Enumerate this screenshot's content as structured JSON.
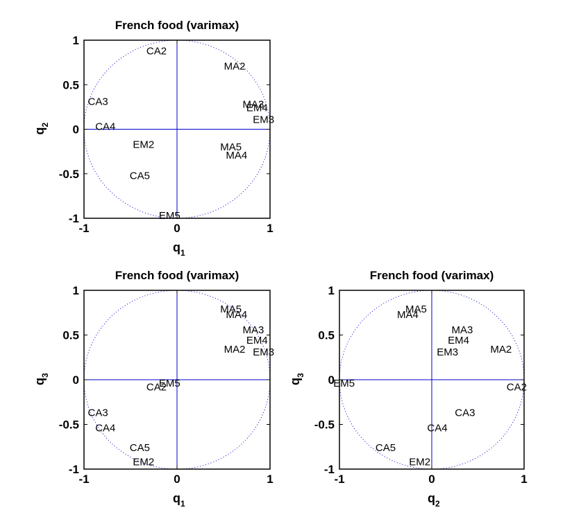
{
  "colors": {
    "axis": "#000000",
    "crosshair": "#0000cc",
    "circle": "#0000cc",
    "text": "#000000"
  },
  "chart_data": [
    {
      "type": "scatter",
      "title": "French food (varimax)",
      "xlabel": {
        "main": "q",
        "sub": "1"
      },
      "ylabel": {
        "main": "q",
        "sub": "2"
      },
      "xlim": [
        -1,
        1
      ],
      "ylim": [
        -1,
        1
      ],
      "xticks": [
        "-1",
        "0",
        "1"
      ],
      "yticks": [
        "1",
        "0.5",
        "0",
        "-0.5",
        "-1"
      ],
      "unit_circle": true,
      "points": [
        {
          "label": "CA2",
          "x": -0.22,
          "y": 0.88
        },
        {
          "label": "MA2",
          "x": 0.62,
          "y": 0.71
        },
        {
          "label": "CA3",
          "x": -0.85,
          "y": 0.31
        },
        {
          "label": "MA3",
          "x": 0.82,
          "y": 0.28
        },
        {
          "label": "EM4",
          "x": 0.86,
          "y": 0.24
        },
        {
          "label": "EM3",
          "x": 0.93,
          "y": 0.11
        },
        {
          "label": "CA4",
          "x": -0.77,
          "y": 0.03
        },
        {
          "label": "EM2",
          "x": -0.36,
          "y": -0.17
        },
        {
          "label": "MA5",
          "x": 0.58,
          "y": -0.2
        },
        {
          "label": "MA4",
          "x": 0.64,
          "y": -0.29
        },
        {
          "label": "CA5",
          "x": -0.4,
          "y": -0.52
        },
        {
          "label": "EM5",
          "x": -0.08,
          "y": -0.97
        }
      ]
    },
    {
      "type": "scatter",
      "title": "French food (varimax)",
      "xlabel": {
        "main": "q",
        "sub": "1"
      },
      "ylabel": {
        "main": "q",
        "sub": "3"
      },
      "xlim": [
        -1,
        1
      ],
      "ylim": [
        -1,
        1
      ],
      "xticks": [
        "-1",
        "0",
        "1"
      ],
      "yticks": [
        "1",
        "0.5",
        "0",
        "-0.5",
        "-1"
      ],
      "unit_circle": true,
      "points": [
        {
          "label": "MA5",
          "x": 0.58,
          "y": 0.79
        },
        {
          "label": "MA4",
          "x": 0.64,
          "y": 0.73
        },
        {
          "label": "MA3",
          "x": 0.82,
          "y": 0.56
        },
        {
          "label": "EM4",
          "x": 0.86,
          "y": 0.44
        },
        {
          "label": "MA2",
          "x": 0.62,
          "y": 0.34
        },
        {
          "label": "EM3",
          "x": 0.93,
          "y": 0.31
        },
        {
          "label": "EM5",
          "x": -0.08,
          "y": -0.04
        },
        {
          "label": "CA2",
          "x": -0.22,
          "y": -0.08
        },
        {
          "label": "CA3",
          "x": -0.85,
          "y": -0.37
        },
        {
          "label": "CA4",
          "x": -0.77,
          "y": -0.54
        },
        {
          "label": "CA5",
          "x": -0.4,
          "y": -0.76
        },
        {
          "label": "EM2",
          "x": -0.36,
          "y": -0.92
        }
      ]
    },
    {
      "type": "scatter",
      "title": "French food (varimax)",
      "xlabel": {
        "main": "q",
        "sub": "2"
      },
      "ylabel": {
        "main": "q",
        "sub": "3"
      },
      "xlim": [
        -1,
        1
      ],
      "ylim": [
        -1,
        1
      ],
      "xticks": [
        "-1",
        "0",
        "1"
      ],
      "yticks": [
        "1",
        "0.5",
        "0",
        "-0.5",
        "-1"
      ],
      "unit_circle": true,
      "points": [
        {
          "label": "MA5",
          "x": -0.17,
          "y": 0.79
        },
        {
          "label": "MA4",
          "x": -0.26,
          "y": 0.73
        },
        {
          "label": "MA3",
          "x": 0.33,
          "y": 0.56
        },
        {
          "label": "EM4",
          "x": 0.29,
          "y": 0.44
        },
        {
          "label": "MA2",
          "x": 0.75,
          "y": 0.34
        },
        {
          "label": "EM3",
          "x": 0.17,
          "y": 0.31
        },
        {
          "label": "EM5",
          "x": -0.95,
          "y": -0.04
        },
        {
          "label": "CA2",
          "x": 0.92,
          "y": -0.08
        },
        {
          "label": "CA3",
          "x": 0.36,
          "y": -0.37
        },
        {
          "label": "CA4",
          "x": 0.06,
          "y": -0.54
        },
        {
          "label": "CA5",
          "x": -0.5,
          "y": -0.76
        },
        {
          "label": "EM2",
          "x": -0.13,
          "y": -0.92
        }
      ]
    }
  ]
}
